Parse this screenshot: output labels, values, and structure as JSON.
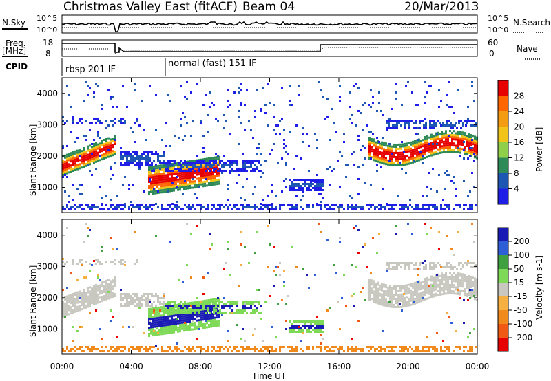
{
  "header": {
    "title": "Christmas Valley East (fitACF)",
    "beam": "Beam 04",
    "date": "20/Mar/2013"
  },
  "strip": {
    "nsky_label": "N.Sky",
    "nsearch_label": "N.Search",
    "freq_label_1": "Freq.",
    "freq_label_2": "[MHz]",
    "nave_label": "Nave",
    "cpid_label": "CPID",
    "noise_ticks_left": [
      "10^5",
      "10^0"
    ],
    "noise_ticks_right": [
      "10^5",
      "10^0"
    ],
    "freq_ticks_left": [
      "18",
      "8"
    ],
    "nave_ticks_right": [
      "60",
      "0"
    ],
    "cpid_modes": [
      {
        "label": "rbsp 201 IF",
        "start_hour": 0
      },
      {
        "label": "normal (fast) 151 IF",
        "start_hour": 6
      }
    ]
  },
  "chart_data": [
    {
      "type": "heatmap",
      "title": "Power",
      "ylabel": "Slant Range [km]",
      "xlabel": "",
      "ylim": [
        200,
        4500
      ],
      "xlim": [
        0,
        24
      ],
      "yticks": [
        "1000",
        "2000",
        "3000",
        "4000"
      ],
      "colorbar_label": "Power [dB]",
      "colorbar_ticks": [
        "4",
        "8",
        "12",
        "16",
        "20",
        "24",
        "28"
      ],
      "colorbar_colors": [
        "#1e1ee6",
        "#1e56b4",
        "#2e8b57",
        "#8fcf4a",
        "#f0c419",
        "#f39c12",
        "#ff6600",
        "#e60000"
      ]
    },
    {
      "type": "heatmap",
      "title": "Velocity",
      "ylabel": "Slant Range [km]",
      "xlabel": "Time UT",
      "ylim": [
        200,
        4500
      ],
      "xlim": [
        0,
        24
      ],
      "yticks": [
        "1000",
        "2000",
        "3000",
        "4000"
      ],
      "xticks": [
        "00:00",
        "04:00",
        "08:00",
        "12:00",
        "16:00",
        "20:00",
        "00:00"
      ],
      "colorbar_label": "Velocity [m s-1]",
      "colorbar_ticks": [
        "200",
        "100",
        "50",
        "15",
        "-15",
        "-50",
        "-100",
        "-200"
      ],
      "colorbar_colors": [
        "#1a1ab4",
        "#2e5fd6",
        "#3fa03f",
        "#7ed957",
        "#c8c8c0",
        "#f5b041",
        "#f08a1c",
        "#f05a14",
        "#e60000"
      ]
    }
  ]
}
